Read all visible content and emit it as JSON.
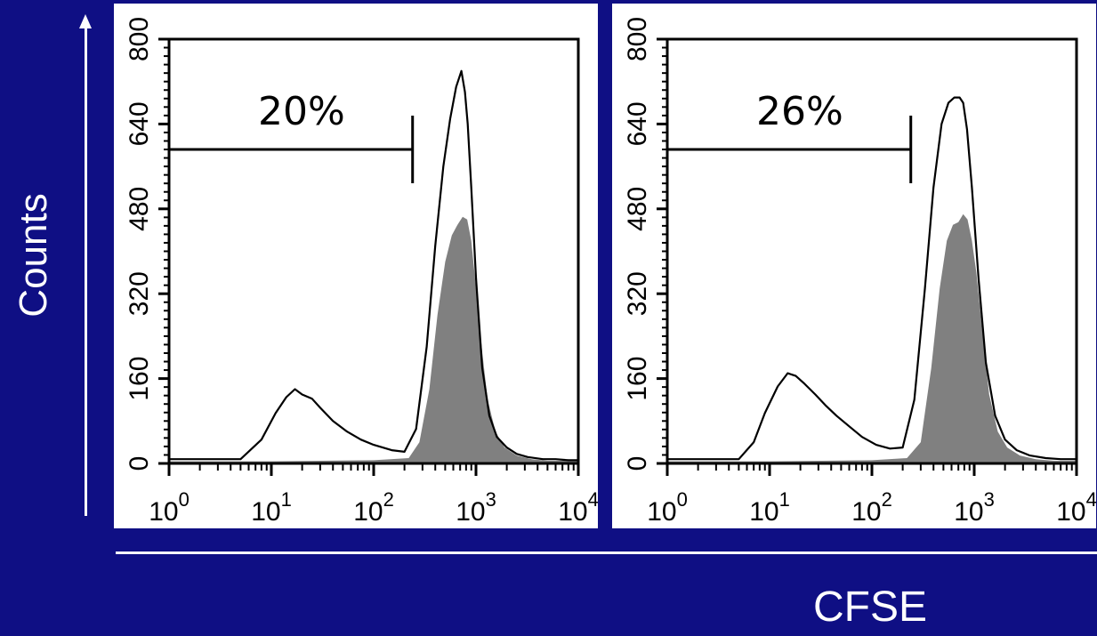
{
  "figure": {
    "ylabel": "Counts",
    "xlabel": "CFSE",
    "colors": {
      "background": "#0f0f84",
      "panel": "#ffffff",
      "filled": "#808080",
      "line": "#000000"
    }
  },
  "chart_data": [
    {
      "type": "area",
      "xscale": "log",
      "xlim": [
        1,
        10000
      ],
      "ylim": [
        0,
        800
      ],
      "xticks": [
        {
          "value": 1,
          "base": "10",
          "exp": "0"
        },
        {
          "value": 10,
          "base": "10",
          "exp": "1"
        },
        {
          "value": 100,
          "base": "10",
          "exp": "2"
        },
        {
          "value": 1000,
          "base": "10",
          "exp": "3"
        },
        {
          "value": 10000,
          "base": "10",
          "exp": "4"
        }
      ],
      "yticks": [
        "0",
        "160",
        "320",
        "480",
        "640",
        "800"
      ],
      "gate": {
        "label": "20%",
        "x_start": 1,
        "x_end": 240,
        "y": 592
      },
      "series": [
        {
          "style": "outline",
          "x": [
            1,
            3,
            5,
            8,
            11,
            14,
            17,
            20,
            25,
            30,
            40,
            55,
            75,
            100,
            150,
            200,
            260,
            330,
            400,
            480,
            560,
            640,
            720,
            780,
            830,
            900,
            1000,
            1150,
            1350,
            1600,
            2000,
            2500,
            3200,
            4500,
            6000,
            8000,
            10000
          ],
          "y": [
            8,
            8,
            8,
            45,
            95,
            125,
            140,
            130,
            122,
            105,
            80,
            60,
            45,
            35,
            25,
            22,
            65,
            220,
            410,
            560,
            650,
            710,
            740,
            700,
            640,
            520,
            350,
            180,
            90,
            50,
            30,
            18,
            12,
            8,
            8,
            6,
            6
          ]
        },
        {
          "style": "filled",
          "x": [
            1,
            10,
            100,
            220,
            280,
            350,
            420,
            500,
            580,
            660,
            740,
            820,
            900,
            1000,
            1150,
            1300,
            1550,
            1900,
            2500,
            3500,
            5000,
            10000
          ],
          "y": [
            4,
            4,
            6,
            10,
            40,
            140,
            280,
            380,
            430,
            450,
            465,
            460,
            420,
            330,
            210,
            120,
            60,
            30,
            15,
            8,
            5,
            5
          ]
        }
      ]
    },
    {
      "type": "area",
      "xscale": "log",
      "xlim": [
        1,
        10000
      ],
      "ylim": [
        0,
        800
      ],
      "xticks": [
        {
          "value": 1,
          "base": "10",
          "exp": "0"
        },
        {
          "value": 10,
          "base": "10",
          "exp": "1"
        },
        {
          "value": 100,
          "base": "10",
          "exp": "2"
        },
        {
          "value": 1000,
          "base": "10",
          "exp": "3"
        },
        {
          "value": 10000,
          "base": "10",
          "exp": "4"
        }
      ],
      "yticks": [
        "0",
        "160",
        "320",
        "480",
        "640",
        "800"
      ],
      "gate": {
        "label": "26%",
        "x_start": 1,
        "x_end": 240,
        "y": 592
      },
      "series": [
        {
          "style": "outline",
          "x": [
            1,
            3,
            5,
            7,
            9,
            12,
            15,
            18,
            22,
            28,
            35,
            45,
            60,
            80,
            110,
            150,
            200,
            260,
            330,
            400,
            480,
            560,
            640,
            720,
            780,
            850,
            950,
            1100,
            1300,
            1600,
            2000,
            2600,
            3500,
            5000,
            7000,
            10000
          ],
          "y": [
            8,
            8,
            8,
            40,
            95,
            145,
            170,
            165,
            150,
            130,
            110,
            90,
            70,
            50,
            35,
            28,
            30,
            120,
            330,
            520,
            640,
            680,
            690,
            690,
            680,
            630,
            520,
            350,
            190,
            90,
            45,
            25,
            15,
            10,
            8,
            8
          ]
        },
        {
          "style": "filled",
          "x": [
            1,
            10,
            100,
            220,
            300,
            380,
            460,
            540,
            620,
            700,
            780,
            860,
            950,
            1050,
            1200,
            1400,
            1700,
            2100,
            2800,
            4000,
            6000,
            10000
          ],
          "y": [
            4,
            4,
            6,
            10,
            40,
            180,
            330,
            420,
            450,
            455,
            470,
            460,
            420,
            360,
            250,
            130,
            60,
            30,
            15,
            8,
            5,
            5
          ]
        }
      ]
    }
  ]
}
